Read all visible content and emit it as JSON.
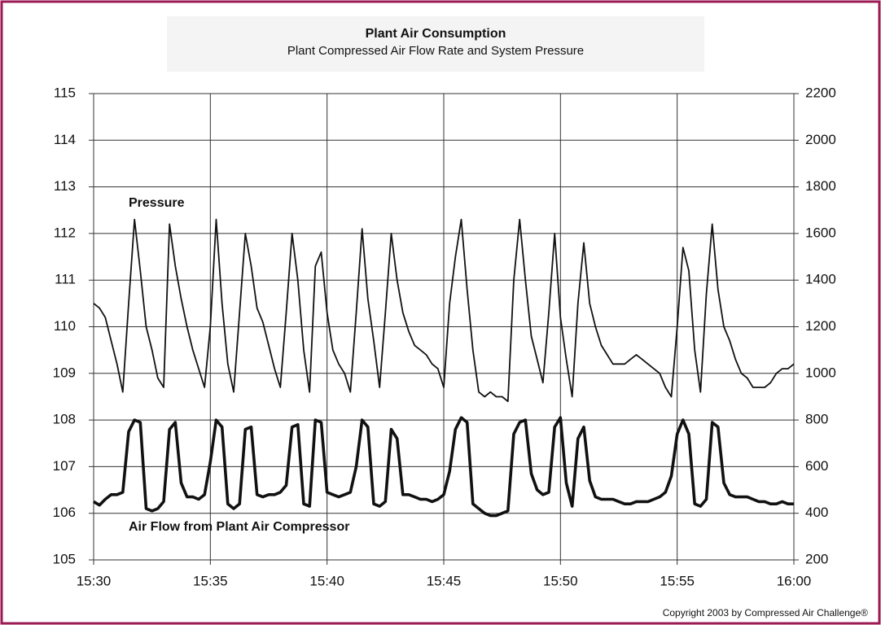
{
  "chart_data": {
    "type": "line",
    "title": "Plant Air Consumption",
    "subtitle": "Plant Compressed Air Flow Rate and System Pressure",
    "annotation": "Copyright 2003 by Compressed Air Challenge®",
    "x": [
      0,
      0.25,
      0.5,
      0.75,
      1,
      1.25,
      1.5,
      1.75,
      2,
      2.25,
      2.5,
      2.75,
      3,
      3.25,
      3.5,
      3.75,
      4,
      4.25,
      4.5,
      4.75,
      5,
      5.25,
      5.5,
      5.75,
      6,
      6.25,
      6.5,
      6.75,
      7,
      7.25,
      7.5,
      7.75,
      8,
      8.25,
      8.5,
      8.75,
      9,
      9.25,
      9.5,
      9.75,
      10,
      10.25,
      10.5,
      10.75,
      11,
      11.25,
      11.5,
      11.75,
      12,
      12.25,
      12.5,
      12.75,
      13,
      13.25,
      13.5,
      13.75,
      14,
      14.25,
      14.5,
      14.75,
      15,
      15.25,
      15.5,
      15.75,
      16,
      16.25,
      16.5,
      16.75,
      17,
      17.25,
      17.5,
      17.75,
      18,
      18.25,
      18.5,
      18.75,
      19,
      19.25,
      19.5,
      19.75,
      20,
      20.25,
      20.5,
      20.75,
      21,
      21.25,
      21.5,
      21.75,
      22,
      22.25,
      22.5,
      22.75,
      23,
      23.25,
      23.5,
      23.75,
      24,
      24.25,
      24.5,
      24.75,
      25,
      25.25,
      25.5,
      25.75,
      26,
      26.25,
      26.5,
      26.75,
      27,
      27.25,
      27.5,
      27.75,
      28,
      28.25,
      28.5,
      28.75,
      29,
      29.25,
      29.5,
      29.75,
      30
    ],
    "xlim": [
      0,
      30
    ],
    "xticks": [
      {
        "value": 0,
        "label": "15:30"
      },
      {
        "value": 5,
        "label": "15:35"
      },
      {
        "value": 10,
        "label": "15:40"
      },
      {
        "value": 15,
        "label": "15:45"
      },
      {
        "value": 20,
        "label": "15:50"
      },
      {
        "value": 25,
        "label": "15:55"
      },
      {
        "value": 30,
        "label": "16:00"
      }
    ],
    "ylim": [
      105,
      115
    ],
    "yticks": [
      105,
      106,
      107,
      108,
      109,
      110,
      111,
      112,
      113,
      114,
      115
    ],
    "y2lim": [
      200,
      2200
    ],
    "y2ticks": [
      200,
      400,
      600,
      800,
      1000,
      1200,
      1400,
      1600,
      1800,
      2000,
      2200
    ],
    "grid": true,
    "series": [
      {
        "name": "Pressure",
        "color": "#111111",
        "axis": "y",
        "values": [
          110.5,
          110.4,
          110.2,
          109.7,
          109.2,
          108.6,
          110.5,
          112.3,
          111.2,
          110.0,
          109.5,
          108.9,
          108.7,
          112.2,
          111.3,
          110.6,
          110.0,
          109.5,
          109.1,
          108.7,
          110.0,
          112.3,
          110.5,
          109.2,
          108.6,
          110.3,
          112.0,
          111.3,
          110.4,
          110.1,
          109.6,
          109.1,
          108.7,
          110.3,
          112.0,
          111.0,
          109.5,
          108.6,
          111.3,
          111.6,
          110.3,
          109.5,
          109.2,
          109.0,
          108.6,
          110.3,
          112.1,
          110.6,
          109.7,
          108.7,
          110.3,
          112.0,
          111.0,
          110.3,
          109.9,
          109.6,
          109.5,
          109.4,
          109.2,
          109.1,
          108.7,
          110.5,
          111.5,
          112.3,
          110.8,
          109.5,
          108.6,
          108.5,
          108.6,
          108.5,
          108.5,
          108.4,
          111.0,
          112.3,
          111.0,
          109.8,
          109.3,
          108.8,
          110.3,
          112.0,
          110.2,
          109.3,
          108.5,
          110.5,
          111.8,
          110.5,
          110.0,
          109.6,
          109.4,
          109.2,
          109.2,
          109.2,
          109.3,
          109.4,
          109.3,
          109.2,
          109.1,
          109.0,
          108.7,
          108.5,
          110.0,
          111.7,
          111.2,
          109.5,
          108.6,
          110.7,
          112.2,
          110.8,
          110.0,
          109.7,
          109.3,
          109.0,
          108.9,
          108.7,
          108.7,
          108.7,
          108.8,
          109.0,
          109.1,
          109.1,
          109.2
        ]
      },
      {
        "name": "Air Flow from Plant Air Compressor",
        "color": "#111111",
        "axis": "y2",
        "values": [
          450,
          435,
          460,
          480,
          480,
          490,
          750,
          800,
          790,
          420,
          410,
          420,
          450,
          760,
          790,
          530,
          470,
          470,
          460,
          480,
          620,
          800,
          770,
          440,
          420,
          440,
          760,
          770,
          480,
          470,
          480,
          480,
          490,
          520,
          770,
          780,
          440,
          430,
          800,
          790,
          490,
          480,
          470,
          480,
          490,
          600,
          800,
          770,
          440,
          430,
          450,
          760,
          720,
          480,
          480,
          470,
          460,
          460,
          450,
          460,
          480,
          580,
          760,
          810,
          790,
          440,
          420,
          400,
          390,
          390,
          400,
          410,
          740,
          790,
          800,
          570,
          500,
          480,
          490,
          770,
          810,
          530,
          430,
          720,
          770,
          540,
          470,
          460,
          460,
          460,
          450,
          440,
          440,
          450,
          450,
          450,
          460,
          470,
          490,
          560,
          740,
          800,
          740,
          440,
          430,
          460,
          790,
          770,
          530,
          480,
          470,
          470,
          470,
          460,
          450,
          450,
          440,
          440,
          450,
          440,
          440
        ]
      }
    ]
  }
}
